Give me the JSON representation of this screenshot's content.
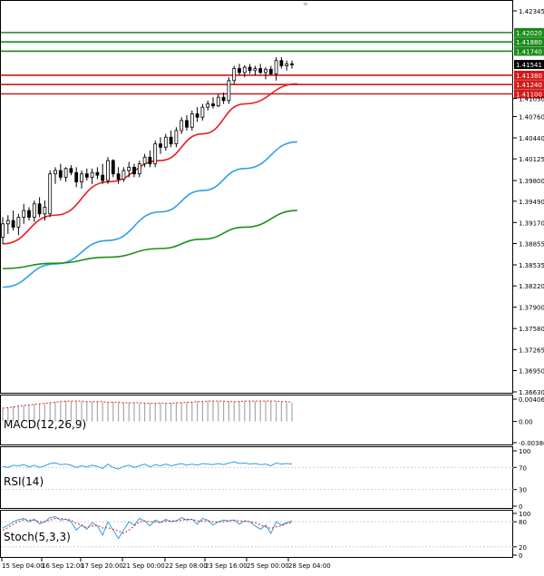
{
  "chart_data": [
    {
      "type": "candlestick",
      "panel": "price",
      "y_ticks": [
        "1.42345",
        "1.41030",
        "1.40760",
        "1.40440",
        "1.40125",
        "1.39800",
        "1.39490",
        "1.39170",
        "1.38855",
        "1.38535",
        "1.38220",
        "1.37900",
        "1.37580",
        "1.37265",
        "1.36950",
        "1.36630"
      ],
      "ylim": [
        1.3663,
        1.42345
      ],
      "candles": [
        {
          "o": 1.3895,
          "h": 1.3925,
          "l": 1.3885,
          "c": 1.3915
        },
        {
          "o": 1.3915,
          "h": 1.3928,
          "l": 1.39,
          "c": 1.392
        },
        {
          "o": 1.392,
          "h": 1.3935,
          "l": 1.3905,
          "c": 1.391
        },
        {
          "o": 1.391,
          "h": 1.393,
          "l": 1.3898,
          "c": 1.3925
        },
        {
          "o": 1.3925,
          "h": 1.3945,
          "l": 1.3915,
          "c": 1.3935
        },
        {
          "o": 1.3935,
          "h": 1.394,
          "l": 1.392,
          "c": 1.3925
        },
        {
          "o": 1.3925,
          "h": 1.395,
          "l": 1.3918,
          "c": 1.3945
        },
        {
          "o": 1.3945,
          "h": 1.3955,
          "l": 1.3925,
          "c": 1.393
        },
        {
          "o": 1.393,
          "h": 1.395,
          "l": 1.392,
          "c": 1.394
        },
        {
          "o": 1.393,
          "h": 1.3995,
          "l": 1.3925,
          "c": 1.399
        },
        {
          "o": 1.399,
          "h": 1.4,
          "l": 1.3975,
          "c": 1.3995
        },
        {
          "o": 1.3995,
          "h": 1.4005,
          "l": 1.398,
          "c": 1.3985
        },
        {
          "o": 1.3985,
          "h": 1.4,
          "l": 1.3978,
          "c": 1.3998
        },
        {
          "o": 1.3998,
          "h": 1.4003,
          "l": 1.3988,
          "c": 1.3992
        },
        {
          "o": 1.3992,
          "h": 1.4,
          "l": 1.397,
          "c": 1.3978
        },
        {
          "o": 1.3978,
          "h": 1.3995,
          "l": 1.3968,
          "c": 1.399
        },
        {
          "o": 1.399,
          "h": 1.3998,
          "l": 1.398,
          "c": 1.3985
        },
        {
          "o": 1.3985,
          "h": 1.3998,
          "l": 1.3975,
          "c": 1.3992
        },
        {
          "o": 1.3992,
          "h": 1.4,
          "l": 1.3982,
          "c": 1.3988
        },
        {
          "o": 1.3988,
          "h": 1.4005,
          "l": 1.3975,
          "c": 1.398
        },
        {
          "o": 1.398,
          "h": 1.4015,
          "l": 1.3975,
          "c": 1.401
        },
        {
          "o": 1.401,
          "h": 1.4012,
          "l": 1.3985,
          "c": 1.399
        },
        {
          "o": 1.399,
          "h": 1.4,
          "l": 1.3975,
          "c": 1.3982
        },
        {
          "o": 1.3982,
          "h": 1.4,
          "l": 1.3978,
          "c": 1.3995
        },
        {
          "o": 1.3995,
          "h": 1.4008,
          "l": 1.3985,
          "c": 1.4
        },
        {
          "o": 1.4,
          "h": 1.4005,
          "l": 1.3985,
          "c": 1.399
        },
        {
          "o": 1.399,
          "h": 1.401,
          "l": 1.3985,
          "c": 1.4005
        },
        {
          "o": 1.4005,
          "h": 1.402,
          "l": 1.4,
          "c": 1.4015
        },
        {
          "o": 1.4015,
          "h": 1.4025,
          "l": 1.4,
          "c": 1.4005
        },
        {
          "o": 1.4005,
          "h": 1.404,
          "l": 1.4,
          "c": 1.4035
        },
        {
          "o": 1.4035,
          "h": 1.4045,
          "l": 1.402,
          "c": 1.403
        },
        {
          "o": 1.403,
          "h": 1.405,
          "l": 1.4025,
          "c": 1.4045
        },
        {
          "o": 1.4045,
          "h": 1.4055,
          "l": 1.403,
          "c": 1.4035
        },
        {
          "o": 1.4035,
          "h": 1.406,
          "l": 1.403,
          "c": 1.4055
        },
        {
          "o": 1.4055,
          "h": 1.4075,
          "l": 1.405,
          "c": 1.407
        },
        {
          "o": 1.407,
          "h": 1.4078,
          "l": 1.4055,
          "c": 1.406
        },
        {
          "o": 1.406,
          "h": 1.4085,
          "l": 1.4055,
          "c": 1.408
        },
        {
          "o": 1.408,
          "h": 1.409,
          "l": 1.4068,
          "c": 1.4075
        },
        {
          "o": 1.4075,
          "h": 1.4095,
          "l": 1.407,
          "c": 1.409
        },
        {
          "o": 1.409,
          "h": 1.41,
          "l": 1.4085,
          "c": 1.4095
        },
        {
          "o": 1.4095,
          "h": 1.4105,
          "l": 1.4088,
          "c": 1.4092
        },
        {
          "o": 1.4092,
          "h": 1.411,
          "l": 1.409,
          "c": 1.4105
        },
        {
          "o": 1.4105,
          "h": 1.4112,
          "l": 1.4095,
          "c": 1.41
        },
        {
          "o": 1.41,
          "h": 1.4135,
          "l": 1.4095,
          "c": 1.413
        },
        {
          "o": 1.413,
          "h": 1.4152,
          "l": 1.4125,
          "c": 1.4148
        },
        {
          "o": 1.4148,
          "h": 1.4155,
          "l": 1.4138,
          "c": 1.4142
        },
        {
          "o": 1.4142,
          "h": 1.4153,
          "l": 1.4135,
          "c": 1.415
        },
        {
          "o": 1.415,
          "h": 1.4155,
          "l": 1.414,
          "c": 1.4145
        },
        {
          "o": 1.4145,
          "h": 1.4152,
          "l": 1.4138,
          "c": 1.4148
        },
        {
          "o": 1.4148,
          "h": 1.4155,
          "l": 1.414,
          "c": 1.4142
        },
        {
          "o": 1.4142,
          "h": 1.415,
          "l": 1.4132,
          "c": 1.4147
        },
        {
          "o": 1.4147,
          "h": 1.4152,
          "l": 1.4138,
          "c": 1.414
        },
        {
          "o": 1.414,
          "h": 1.4165,
          "l": 1.413,
          "c": 1.416
        },
        {
          "o": 1.416,
          "h": 1.4165,
          "l": 1.4148,
          "c": 1.4152
        },
        {
          "o": 1.4152,
          "h": 1.416,
          "l": 1.4145,
          "c": 1.4155
        },
        {
          "o": 1.4155,
          "h": 1.416,
          "l": 1.4148,
          "c": 1.4154
        }
      ],
      "moving_averages": [
        {
          "color": "#ee1b1b",
          "points": [
            [
              0,
              1.3885
            ],
            [
              10,
              1.3928
            ],
            [
              20,
              1.3978
            ],
            [
              30,
              1.401
            ],
            [
              38,
              1.405
            ],
            [
              46,
              1.4095
            ],
            [
              56,
              1.4125
            ]
          ]
        },
        {
          "color": "#2e9fe6",
          "points": [
            [
              0,
              1.382
            ],
            [
              10,
              1.3855
            ],
            [
              20,
              1.389
            ],
            [
              30,
              1.3933
            ],
            [
              38,
              1.3965
            ],
            [
              46,
              1.3998
            ],
            [
              56,
              1.4038
            ]
          ]
        },
        {
          "color": "#1b8f1b",
          "points": [
            [
              0,
              1.3848
            ],
            [
              10,
              1.3856
            ],
            [
              20,
              1.3865
            ],
            [
              30,
              1.3878
            ],
            [
              38,
              1.3892
            ],
            [
              46,
              1.391
            ],
            [
              56,
              1.3935
            ]
          ]
        }
      ],
      "levels": [
        {
          "label": "1.42020",
          "value": 1.4202,
          "color": "#1a8a1a"
        },
        {
          "label": "1.41880",
          "value": 1.4188,
          "color": "#1a8a1a"
        },
        {
          "label": "1.41740",
          "value": 1.4174,
          "color": "#1a8a1a"
        },
        {
          "label": "1.41380",
          "value": 1.4138,
          "color": "#d11a1a"
        },
        {
          "label": "1.41240",
          "value": 1.4124,
          "color": "#d11a1a"
        },
        {
          "label": "1.41100",
          "value": 1.411,
          "color": "#d11a1a"
        }
      ],
      "current_price": {
        "label": "1.41541",
        "value": 1.41541
      }
    },
    {
      "type": "histogram",
      "panel": "macd",
      "name": "MACD(12,26,9)",
      "y_ticks": [
        "0.004061",
        "0.00",
        "-0.003864"
      ],
      "ylim": [
        -0.003864,
        0.004061
      ],
      "values": [
        0.0025,
        0.0026,
        0.0027,
        0.0028,
        0.0029,
        0.003,
        0.0031,
        0.0032,
        0.0033,
        0.0034,
        0.0035,
        0.0036,
        0.0037,
        0.0037,
        0.0037,
        0.0036,
        0.0036,
        0.0036,
        0.0036,
        0.0035,
        0.0035,
        0.0035,
        0.0034,
        0.0034,
        0.0034,
        0.0034,
        0.0033,
        0.0033,
        0.0033,
        0.0033,
        0.0033,
        0.0033,
        0.0034,
        0.0034,
        0.0035,
        0.0035,
        0.0036,
        0.0036,
        0.0037,
        0.0037,
        0.0037,
        0.0037,
        0.0036,
        0.0036,
        0.0036,
        0.0037,
        0.0037,
        0.0037,
        0.0037,
        0.0037,
        0.0037,
        0.0037,
        0.0036,
        0.0036,
        0.0035,
        0.0034
      ],
      "signal": [
        0.0024,
        0.0025,
        0.0026,
        0.0028,
        0.0029,
        0.003,
        0.0031,
        0.0032,
        0.0033,
        0.0034,
        0.0035,
        0.0036,
        0.0037,
        0.0037,
        0.0037,
        0.0037,
        0.0036,
        0.0036,
        0.0036,
        0.0036,
        0.0035,
        0.0035,
        0.0035,
        0.0034,
        0.0034,
        0.0034,
        0.0034,
        0.0033,
        0.0033,
        0.0033,
        0.0033,
        0.0033,
        0.0033,
        0.0034,
        0.0034,
        0.0035,
        0.0035,
        0.0036,
        0.0036,
        0.0037,
        0.0037,
        0.0037,
        0.0037,
        0.0036,
        0.0036,
        0.0036,
        0.0037,
        0.0037,
        0.0037,
        0.0037,
        0.0037,
        0.0037,
        0.0037,
        0.0036,
        0.0036,
        0.0035
      ]
    },
    {
      "type": "line",
      "panel": "rsi",
      "name": "RSI(14)",
      "y_ticks": [
        "100",
        "70",
        "30",
        "0"
      ],
      "ylim": [
        0,
        100
      ],
      "values": [
        72,
        70,
        74,
        73,
        75,
        71,
        74,
        70,
        73,
        77,
        78,
        75,
        76,
        74,
        70,
        73,
        71,
        74,
        72,
        68,
        76,
        70,
        67,
        72,
        74,
        70,
        73,
        76,
        71,
        75,
        73,
        76,
        73,
        75,
        77,
        74,
        76,
        74,
        77,
        76,
        75,
        77,
        75,
        78,
        80,
        77,
        78,
        76,
        77,
        75,
        76,
        73,
        78,
        76,
        77,
        76
      ]
    },
    {
      "type": "line",
      "panel": "stoch",
      "name": "Stoch(5,3,3)",
      "y_ticks": [
        "100",
        "80",
        "20",
        "0"
      ],
      "ylim": [
        0,
        100
      ],
      "k": [
        65,
        72,
        80,
        85,
        88,
        80,
        86,
        75,
        80,
        90,
        92,
        84,
        86,
        80,
        60,
        72,
        62,
        78,
        70,
        48,
        80,
        60,
        40,
        60,
        80,
        72,
        88,
        82,
        70,
        84,
        78,
        86,
        80,
        82,
        90,
        84,
        86,
        74,
        88,
        84,
        72,
        80,
        84,
        82,
        84,
        74,
        82,
        80,
        70,
        62,
        72,
        52,
        80,
        72,
        78,
        82
      ],
      "d": [
        60,
        66,
        74,
        80,
        85,
        84,
        84,
        80,
        80,
        84,
        88,
        88,
        86,
        84,
        76,
        72,
        66,
        70,
        72,
        65,
        66,
        62,
        58,
        52,
        60,
        70,
        80,
        82,
        80,
        80,
        78,
        82,
        82,
        82,
        84,
        86,
        86,
        82,
        82,
        82,
        80,
        80,
        80,
        82,
        84,
        82,
        82,
        80,
        78,
        72,
        68,
        64,
        68,
        70,
        76,
        78
      ]
    }
  ],
  "x_axis": {
    "labels": [
      "15 Sep 04:00",
      "16 Sep 12:00",
      "17 Sep 20:00",
      "21 Sep 00:00",
      "22 Sep 08:00",
      "23 Sep 16:00",
      "25 Sep 00:00",
      "28 Sep 04:00"
    ]
  },
  "colors": {
    "bull_candle": "#ffffff",
    "bear_candle": "#000000",
    "grid_border": "#000000"
  }
}
